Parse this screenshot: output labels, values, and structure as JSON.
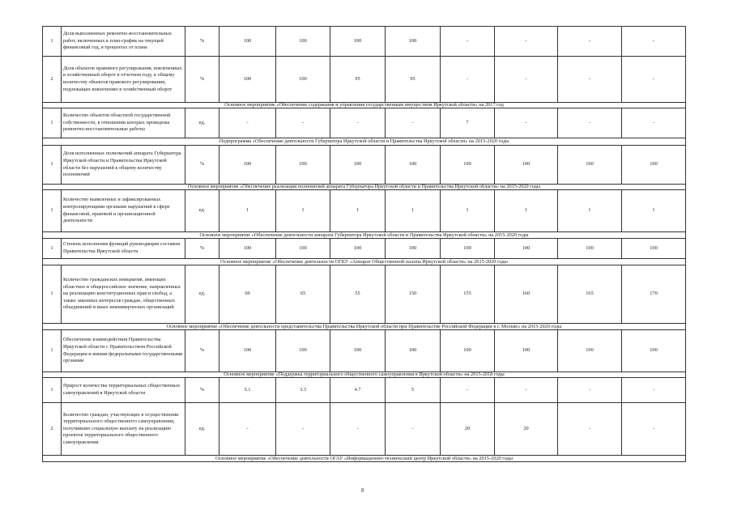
{
  "page_number": "8",
  "rows": [
    {
      "type": "item",
      "num": "1",
      "text": "Доля выполненных ремонтно-восстановительных работ, включенных в план-график на текущий финансовый год, в процентах от плана",
      "unit": "%",
      "values": [
        "100",
        "100",
        "100",
        "100",
        "-",
        "-",
        "-",
        "-"
      ]
    },
    {
      "type": "item",
      "num": "2",
      "text": "Доля объектов правового регулирования, вовлеченных в хозяйственный оборот в отчетном году, к общему количеству объектов правового регулирования, подлежащих вовлечению в хозяйственный оборот",
      "unit": "%",
      "values": [
        "100",
        "100",
        "95",
        "95",
        "-",
        "-",
        "-",
        "-"
      ]
    },
    {
      "type": "header",
      "text": "Основное мероприятие «Обеспечение содержания и управления государственным имуществом Иркутской области» на 2017 год"
    },
    {
      "type": "item",
      "num": "1",
      "text": "Количество объектов областной государственной собственности, в отношении которых проведены ремонтно-восстановительные работы",
      "unit": "ед.",
      "values": [
        "-",
        "-",
        "-",
        "-",
        "7",
        "-",
        "-",
        "-"
      ]
    },
    {
      "type": "header",
      "text": "Подпрограмма «Обеспечение деятельности Губернатора Иркутской области и Правительства Иркутской области» на 2015-2020 годы"
    },
    {
      "type": "item",
      "num": "1",
      "text": "Доля исполненных полномочий аппарата Губернатора Иркутской области и Правительства Иркутской области без нарушений к общему количеству полномочий",
      "unit": "%",
      "values": [
        "100",
        "100",
        "100",
        "100",
        "100",
        "100",
        "100",
        "100"
      ]
    },
    {
      "type": "header",
      "text": "Основное мероприятие «Обеспечение реализации полномочий аппарата Губернатора Иркутской области и Правительства Иркутской области» на 2015-2020 годы"
    },
    {
      "type": "item",
      "num": "1",
      "text": "Количество выявленных и зафиксированных контролирующими органами нарушений в сфере финансовой, правовой и организационной деятельности",
      "unit": "ед.",
      "values": [
        "1",
        "1",
        "1",
        "1",
        "1",
        "1",
        "1",
        "1"
      ]
    },
    {
      "type": "header",
      "text": "Основное мероприятие «Обеспечение деятельности аппарата Губернатора Иркутской области и Правительства Иркутской области» на 2015-2020 годы"
    },
    {
      "type": "item",
      "num": "1",
      "text": "Степень исполнения функций руководящим составом Правительства Иркутской области",
      "unit": "%",
      "values": [
        "100",
        "100",
        "100",
        "100",
        "100",
        "100",
        "100",
        "100"
      ]
    },
    {
      "type": "header",
      "text": "Основное мероприятие «Обеспечение деятельности ОГКУ «Аппарат Общественной палаты Иркутской области» на 2015-2020 годы"
    },
    {
      "type": "item",
      "num": "1",
      "text": "Количество гражданских инициатив, имеющих областное и общероссийское значение, направленных на реализацию конституционных прав и свобод, а также законных интересов граждан, общественных объединений и иных некоммерческих организаций",
      "unit": "ед.",
      "values": [
        "60",
        "65",
        "55",
        "150",
        "155",
        "160",
        "165",
        "170"
      ]
    },
    {
      "type": "header",
      "text": "Основное мероприятие «Обеспечение деятельности представительства Правительства Иркутской области при Правительстве Российской Федерации в г. Москве» на 2015-2020 годы"
    },
    {
      "type": "item",
      "num": "1",
      "text": "Обеспечение взаимодействия Правительства Иркутской области с Правительством Российской Федерации и иными федеральными государственными органами",
      "unit": "%",
      "values": [
        "100",
        "100",
        "100",
        "100",
        "100",
        "100",
        "100",
        "100"
      ]
    },
    {
      "type": "header",
      "text": "Основное мероприятие «Поддержка территориального общественного самоуправления в Иркутской области» на 2015-2018 годы"
    },
    {
      "type": "item",
      "num": "1",
      "text": "Прирост количества территориальных общественных самоуправлений в Иркутской области",
      "unit": "%",
      "values": [
        "5.1",
        "3.3",
        "4.7",
        "5",
        "-",
        "-",
        "-",
        "-"
      ]
    },
    {
      "type": "item",
      "num": "2",
      "text": "Количество граждан, участвующих в осуществлении территориального общественного самоуправления, получивших социальную выплату на реализацию проектов территориального общественного самоуправления",
      "unit": "ед.",
      "values": [
        "-",
        "-",
        "-",
        "-",
        "20",
        "20",
        "-",
        "-"
      ]
    },
    {
      "type": "header",
      "text": "Основное мероприятие «Обеспечение деятельности ОГАУ «Информационно-технический центр Иркутской области» на 2015-2020 годы"
    }
  ]
}
